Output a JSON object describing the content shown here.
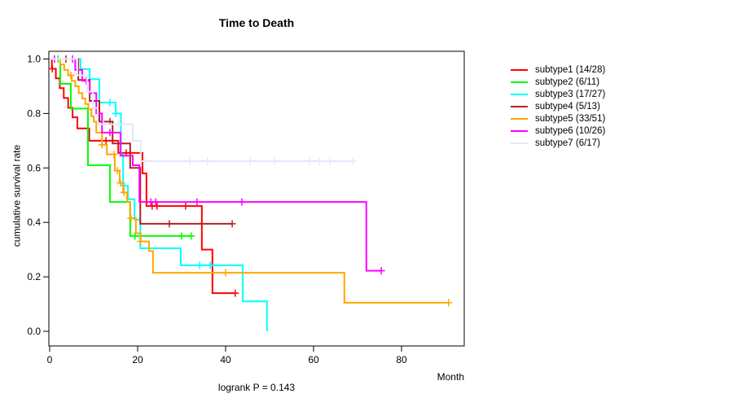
{
  "chart_data": {
    "type": "line",
    "subtype": "kaplan-meier-step",
    "title": "Time to Death",
    "ylabel": "cumulative survival rate",
    "xlabel": "Month",
    "footnote": "logrank P = 0.143",
    "xlim": [
      0,
      94
    ],
    "ylim": [
      0.0,
      1.0
    ],
    "grid": "off",
    "legend_position": "right-outside",
    "xtick_values": [
      0,
      20,
      40,
      60,
      80
    ],
    "xtick_labels": [
      "0",
      "20",
      "40",
      "60",
      "80"
    ],
    "ytick_values": [
      0.0,
      0.2,
      0.4,
      0.6,
      0.8,
      1.0
    ],
    "ytick_labels": [
      "0.0",
      "0.2",
      "0.4",
      "0.6",
      "0.8",
      "1.0"
    ],
    "series": [
      {
        "name": "subtype1 (14/28)",
        "color": "#FF0000",
        "steps": [
          [
            0,
            1.0
          ],
          [
            0.5,
            0.964
          ],
          [
            1.4,
            0.929
          ],
          [
            2.3,
            0.893
          ],
          [
            3.2,
            0.857
          ],
          [
            4.2,
            0.821
          ],
          [
            5.2,
            0.786
          ],
          [
            6.3,
            0.745
          ],
          [
            9.0,
            0.7
          ],
          [
            15.6,
            0.655
          ],
          [
            21.1,
            0.58
          ],
          [
            22.0,
            0.46
          ],
          [
            34.6,
            0.3
          ],
          [
            37.0,
            0.14
          ]
        ],
        "end_time": 42.2,
        "censor_times": [
          0.6,
          12.8,
          17.4,
          18.3,
          23.3,
          24.4,
          30.9,
          42.2
        ]
      },
      {
        "name": "subtype2 (6/11)",
        "color": "#00FF00",
        "steps": [
          [
            0,
            1.0
          ],
          [
            2.4,
            0.909
          ],
          [
            4.8,
            0.818
          ],
          [
            8.7,
            0.61
          ],
          [
            13.7,
            0.475
          ],
          [
            18.3,
            0.35
          ]
        ],
        "end_time": 32.2,
        "censor_times": [
          1.9,
          19.4,
          30.0,
          32.2
        ]
      },
      {
        "name": "subtype3 (17/27)",
        "color": "#00FFFF",
        "steps": [
          [
            0,
            1.0
          ],
          [
            7.0,
            0.963
          ],
          [
            9.1,
            0.926
          ],
          [
            11.3,
            0.84
          ],
          [
            15.0,
            0.8
          ],
          [
            16.2,
            0.65
          ],
          [
            16.7,
            0.535
          ],
          [
            17.8,
            0.485
          ],
          [
            19.3,
            0.41
          ],
          [
            20.6,
            0.305
          ],
          [
            29.8,
            0.2425
          ],
          [
            43.9,
            0.11
          ],
          [
            49.4,
            0.0
          ]
        ],
        "end_time": 49.4,
        "censor_times": [
          13.7,
          15.0,
          16.9,
          34.1,
          36.5
        ]
      },
      {
        "name": "subtype4 (5/13)",
        "color": "#B22222",
        "steps": [
          [
            0,
            1.0
          ],
          [
            6.5,
            0.923
          ],
          [
            9.1,
            0.846
          ],
          [
            11.3,
            0.77
          ],
          [
            14.3,
            0.69
          ],
          [
            18.3,
            0.6
          ],
          [
            20.6,
            0.395
          ]
        ],
        "end_time": 41.5,
        "censor_times": [
          3.7,
          13.7,
          27.2,
          41.5
        ]
      },
      {
        "name": "subtype5 (33/51)",
        "color": "#FFA500",
        "steps": [
          [
            0,
            1.0
          ],
          [
            2.4,
            0.98
          ],
          [
            3.3,
            0.96
          ],
          [
            4.2,
            0.94
          ],
          [
            5.0,
            0.92
          ],
          [
            5.8,
            0.9
          ],
          [
            6.6,
            0.875
          ],
          [
            7.4,
            0.855
          ],
          [
            8.1,
            0.835
          ],
          [
            8.8,
            0.815
          ],
          [
            9.5,
            0.79
          ],
          [
            10.0,
            0.77
          ],
          [
            10.6,
            0.73
          ],
          [
            11.9,
            0.685
          ],
          [
            13.0,
            0.65
          ],
          [
            14.8,
            0.59
          ],
          [
            15.9,
            0.545
          ],
          [
            16.7,
            0.51
          ],
          [
            17.6,
            0.475
          ],
          [
            18.3,
            0.415
          ],
          [
            19.6,
            0.36
          ],
          [
            20.7,
            0.33
          ],
          [
            22.6,
            0.295
          ],
          [
            23.5,
            0.215
          ],
          [
            67.0,
            0.105
          ]
        ],
        "end_time": 90.7,
        "censor_times": [
          4.8,
          11.9,
          14.6,
          15.4,
          16.1,
          16.9,
          18.5,
          20.7,
          40.0,
          90.7
        ]
      },
      {
        "name": "subtype6 (10/26)",
        "color": "#FF00FF",
        "steps": [
          [
            0,
            1.0
          ],
          [
            5.8,
            0.96
          ],
          [
            7.4,
            0.92
          ],
          [
            9.1,
            0.875
          ],
          [
            10.6,
            0.8
          ],
          [
            11.9,
            0.73
          ],
          [
            16.1,
            0.645
          ],
          [
            18.9,
            0.61
          ],
          [
            20.4,
            0.475
          ],
          [
            72.0,
            0.2225
          ]
        ],
        "end_time": 75.4,
        "censor_times": [
          1.1,
          5.2,
          8.3,
          13.7,
          23.0,
          24.1,
          33.5,
          43.7,
          75.4
        ]
      },
      {
        "name": "subtype7 (6/17)",
        "color": "#E6E6FA",
        "steps": [
          [
            0,
            1.0
          ],
          [
            6.3,
            0.94
          ],
          [
            8.5,
            0.88
          ],
          [
            9.8,
            0.82
          ],
          [
            10.9,
            0.76
          ],
          [
            18.9,
            0.7
          ],
          [
            20.7,
            0.625
          ]
        ],
        "end_time": 68.9,
        "censor_times": [
          12.2,
          15.6,
          21.7,
          31.9,
          35.9,
          45.6,
          51.1,
          59.1,
          61.3,
          63.7,
          68.9
        ]
      }
    ]
  }
}
